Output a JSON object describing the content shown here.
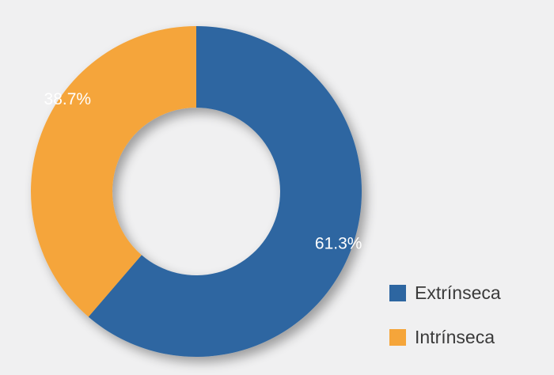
{
  "chart_data": {
    "type": "pie",
    "variant": "donut",
    "title": "",
    "slices": [
      {
        "name": "Extrínseca",
        "value": 61.3,
        "label": "61.3%",
        "color": "#2d66a1"
      },
      {
        "name": "Intrínseca",
        "value": 38.7,
        "label": "38.7%",
        "color": "#f5a53a"
      }
    ],
    "start_angle": "12 o'clock",
    "direction": "clockwise",
    "legend_position": "bottom-right"
  }
}
